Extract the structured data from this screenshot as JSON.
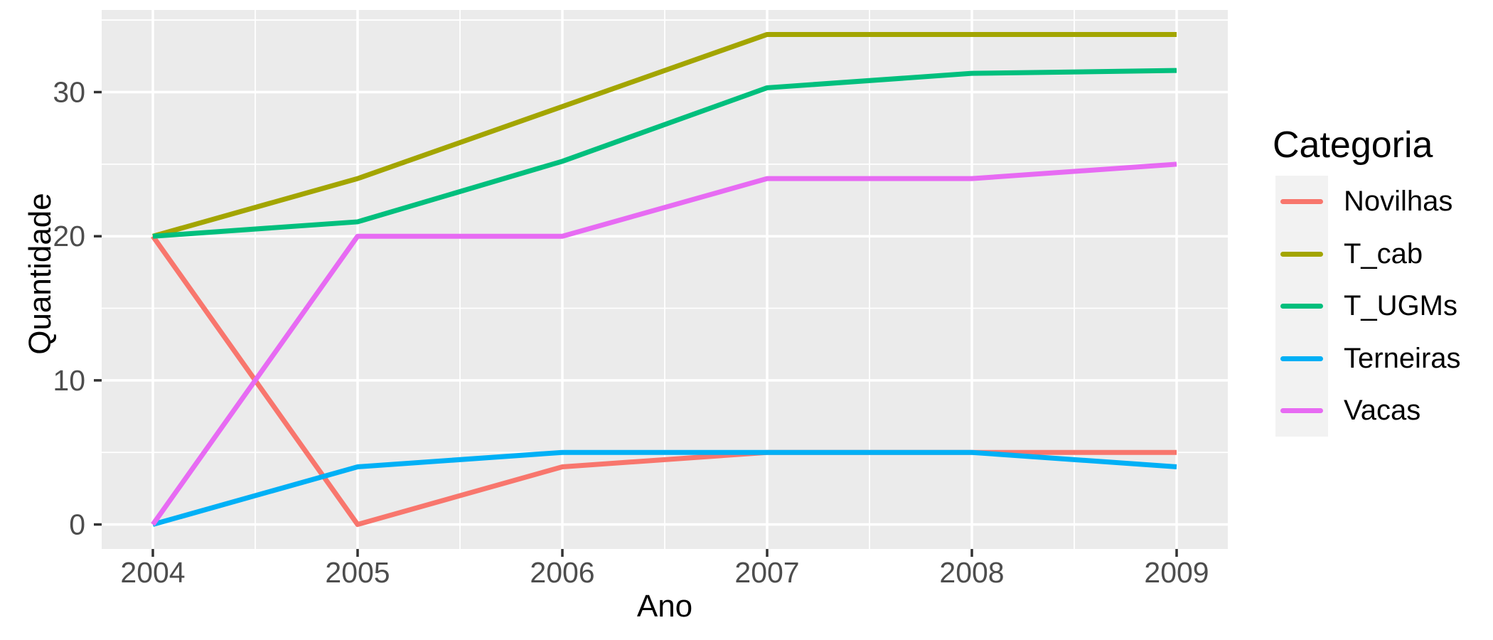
{
  "figure": {
    "background": "#FFFFFF",
    "panel_background": "#EBEBEB",
    "grid_color": "#FFFFFF",
    "axis_tick_color": "#333333",
    "tick_label_color": "#4D4D4D",
    "text_color": "#000000",
    "legend_key_background": "#F2F2F2"
  },
  "chart_data": {
    "type": "line",
    "title": "",
    "xlabel": "Ano",
    "ylabel": "Quantidade",
    "x": [
      2004,
      2005,
      2006,
      2007,
      2008,
      2009
    ],
    "x_tick_labels": [
      "2004",
      "2005",
      "2006",
      "2007",
      "2008",
      "2009"
    ],
    "y_ticks": [
      0,
      10,
      20,
      30
    ],
    "y_tick_labels": [
      "0",
      "10",
      "20",
      "30"
    ],
    "y_minor_ticks": [
      5,
      15,
      25,
      35
    ],
    "x_minor_ticks": [
      2004.5,
      2005.5,
      2006.5,
      2007.5,
      2008.5
    ],
    "xlim": [
      2003.75,
      2009.25
    ],
    "ylim": [
      -1.7,
      35.7
    ],
    "grid": "white major and minor gridlines on gray panel",
    "legend": {
      "title": "Categoria",
      "position": "right"
    },
    "series": [
      {
        "name": "Novilhas",
        "color": "#F8766D",
        "values": [
          20,
          0,
          4,
          5,
          5,
          5
        ]
      },
      {
        "name": "T_cab",
        "color": "#A3A500",
        "values": [
          20,
          24,
          29,
          34,
          34,
          34
        ]
      },
      {
        "name": "T_UGMs",
        "color": "#00BF7D",
        "values": [
          20,
          21,
          25.2,
          30.3,
          31.3,
          31.5
        ]
      },
      {
        "name": "Terneiras",
        "color": "#00B0F6",
        "values": [
          0,
          4,
          5,
          5,
          5,
          4
        ]
      },
      {
        "name": "Vacas",
        "color": "#E76BF3",
        "values": [
          0,
          20,
          20,
          24,
          24,
          25
        ]
      }
    ]
  }
}
